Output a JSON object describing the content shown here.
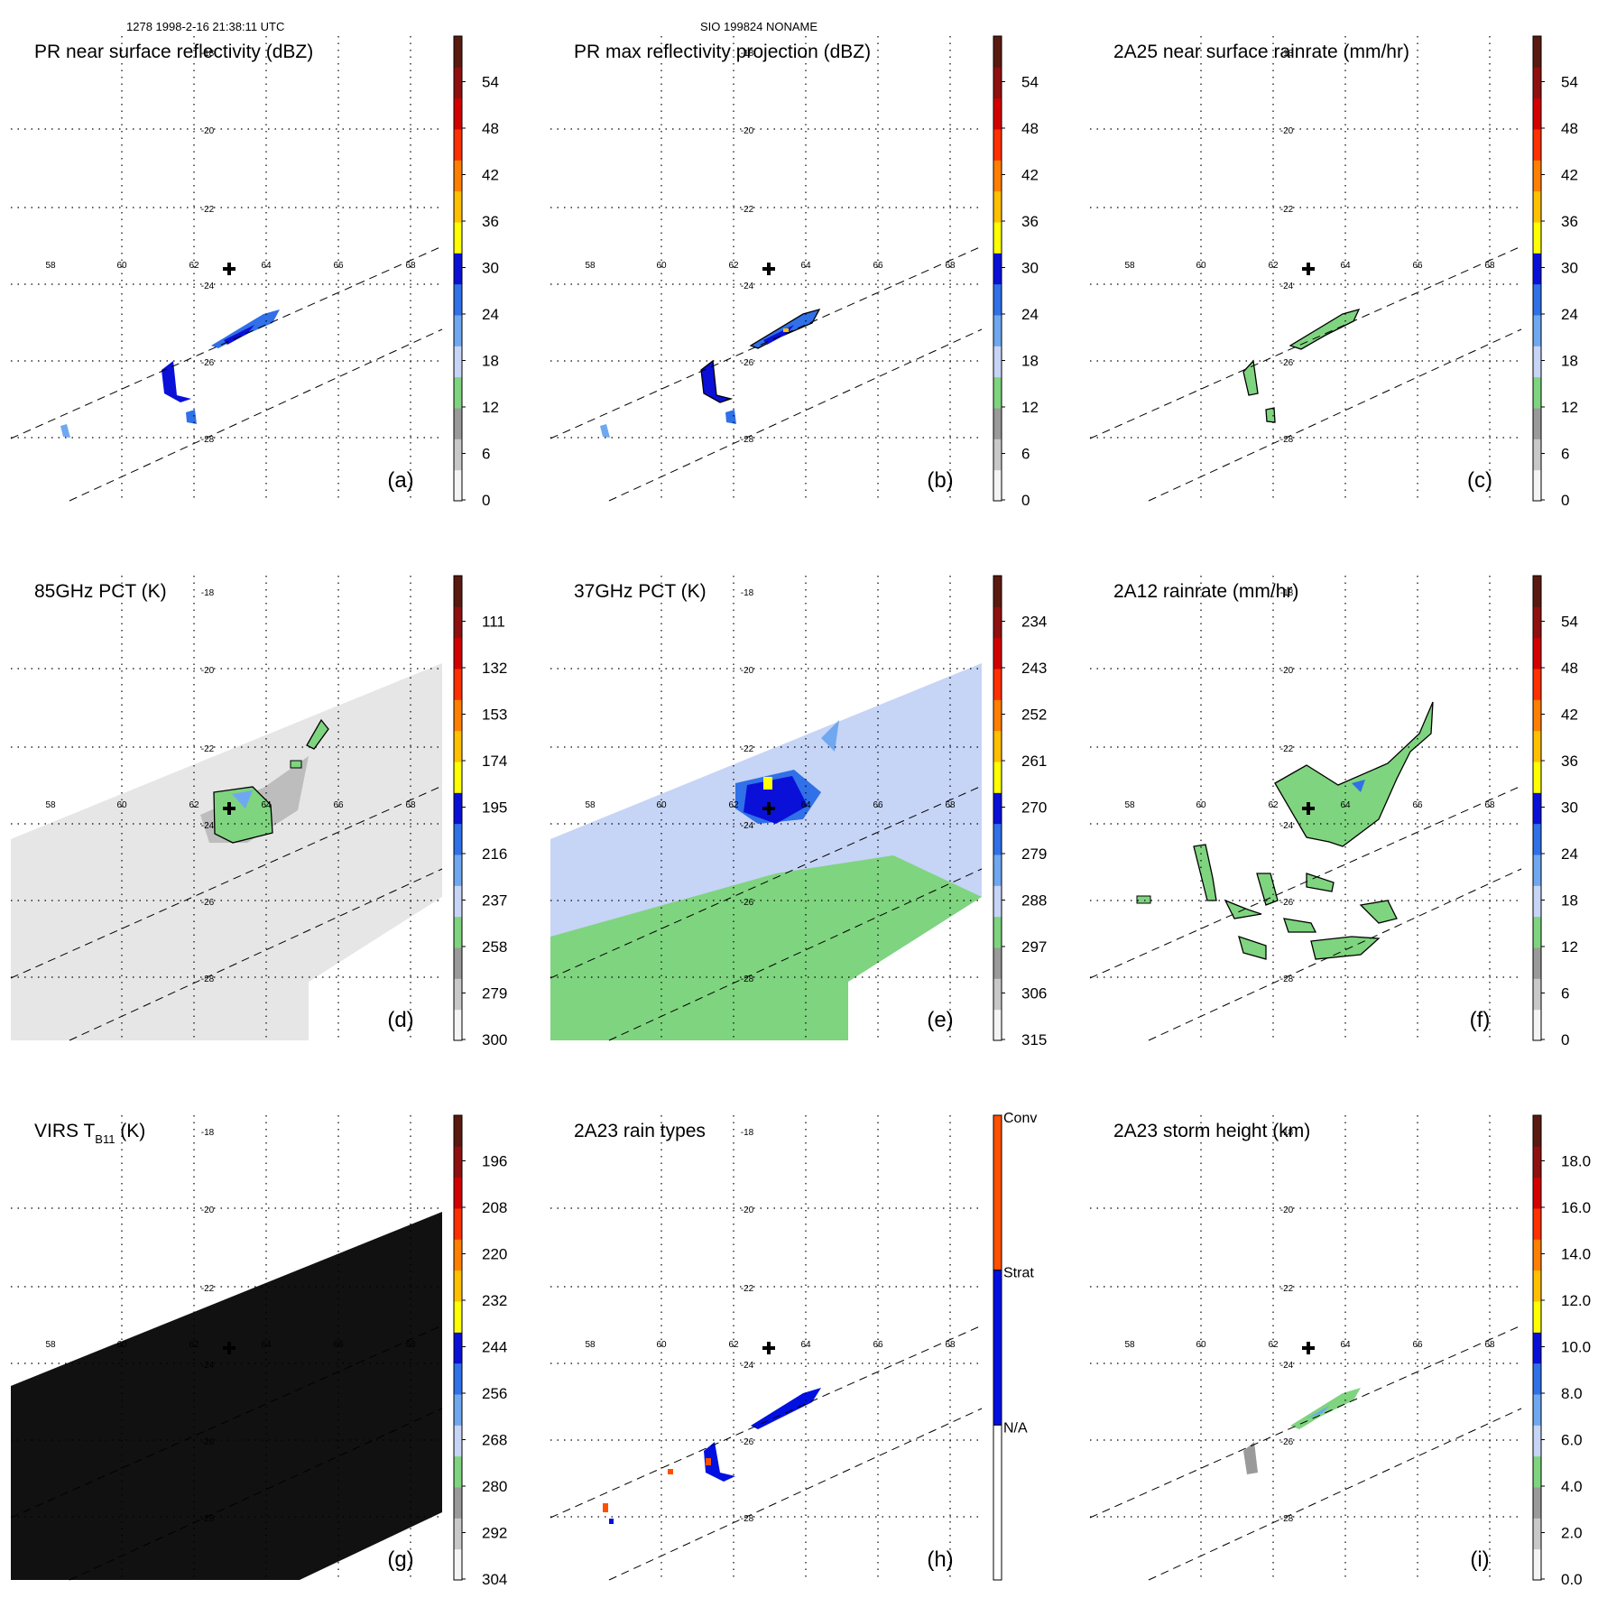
{
  "header": {
    "left": "1278 1998-2-16 21:38:11 UTC",
    "center": "SIO 199824 NONAME"
  },
  "map": {
    "lon_ticks": [
      "58",
      "60",
      "62",
      "64",
      "66",
      "68"
    ],
    "lat_ticks": [
      "-18",
      "-20",
      "-22",
      "-24",
      "-26",
      "-28"
    ],
    "storm_center": {
      "lon": 63.0,
      "lat": -23.9
    }
  },
  "chart_data": [
    {
      "id": "a",
      "type": "heatmap",
      "title": "PR near surface reflectivity (dBZ)",
      "panel_label": "(a)",
      "colorbar": {
        "ticks": [
          "54",
          "48",
          "42",
          "36",
          "30",
          "24",
          "18",
          "12",
          "6",
          "0"
        ]
      },
      "features": "narrow band of 18-30 dBZ echo within PR swath near 63-65E, -24.5 to -26S"
    },
    {
      "id": "b",
      "type": "heatmap",
      "title": "PR max reflectivity projection (dBZ)",
      "panel_label": "(b)",
      "colorbar": {
        "ticks": [
          "54",
          "48",
          "42",
          "36",
          "30",
          "24",
          "18",
          "12",
          "6",
          "0"
        ]
      }
    },
    {
      "id": "c",
      "type": "heatmap",
      "title": "2A25 near surface rainrate (mm/hr)",
      "panel_label": "(c)",
      "colorbar": {
        "ticks": [
          "54",
          "48",
          "42",
          "36",
          "30",
          "24",
          "18",
          "12",
          "6",
          "0"
        ]
      }
    },
    {
      "id": "d",
      "type": "heatmap",
      "title": "85GHz PCT (K)",
      "panel_label": "(d)",
      "colorbar": {
        "ticks": [
          "111",
          "132",
          "153",
          "174",
          "195",
          "216",
          "237",
          "258",
          "279",
          "300"
        ]
      }
    },
    {
      "id": "e",
      "type": "heatmap",
      "title": "37GHz PCT (K)",
      "panel_label": "(e)",
      "colorbar": {
        "ticks": [
          "234",
          "243",
          "252",
          "261",
          "270",
          "279",
          "288",
          "297",
          "306",
          "315"
        ]
      }
    },
    {
      "id": "f",
      "type": "heatmap",
      "title": "2A12 rainrate (mm/hr)",
      "panel_label": "(f)",
      "colorbar": {
        "ticks": [
          "54",
          "48",
          "42",
          "36",
          "30",
          "24",
          "18",
          "12",
          "6",
          "0"
        ]
      }
    },
    {
      "id": "g",
      "type": "heatmap",
      "title": "VIRS T",
      "title_sub": "B11",
      "title_unit": " (K)",
      "panel_label": "(g)",
      "colorbar": {
        "ticks": [
          "196",
          "208",
          "220",
          "232",
          "244",
          "256",
          "268",
          "280",
          "292",
          "304"
        ]
      }
    },
    {
      "id": "h",
      "type": "heatmap",
      "title": "2A23 rain types",
      "panel_label": "(h)",
      "colorbar": {
        "categorical": true,
        "ticks": [
          "Conv",
          "Strat",
          "N/A"
        ]
      }
    },
    {
      "id": "i",
      "type": "heatmap",
      "title": "2A23 storm height (km)",
      "panel_label": "(i)",
      "colorbar": {
        "ticks": [
          "18.0",
          "16.0",
          "14.0",
          "12.0",
          "10.0",
          "8.0",
          "6.0",
          "4.0",
          "2.0",
          "0.0"
        ]
      }
    }
  ],
  "colors": {
    "scale": [
      "#f4f4f4",
      "#c8c8c8",
      "#9a9a9a",
      "#7fd47f",
      "#c6d4f6",
      "#6fa8f0",
      "#3070e8",
      "#0a10d8",
      "#ffff00",
      "#ffc000",
      "#ff8000",
      "#ff3000",
      "#d40000",
      "#901010",
      "#5a1a10"
    ],
    "conv": "#ff5000",
    "strat": "#0010e0",
    "na": "#ffffff",
    "swath_pr": "#000000",
    "tmi_gray": "#e6e6e6",
    "virs_black": "#111111"
  }
}
